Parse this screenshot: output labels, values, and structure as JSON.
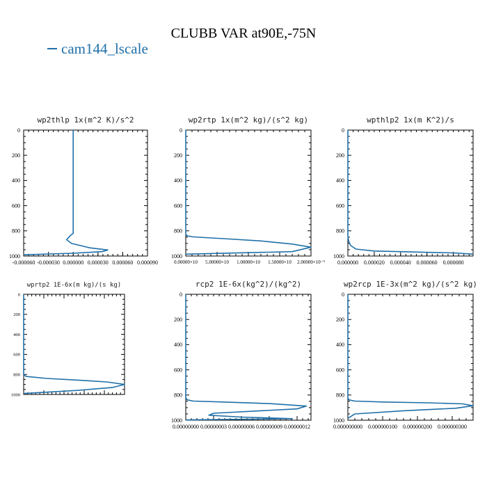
{
  "title": "CLUBB VAR at90E,-75N",
  "legend": {
    "label": "cam144_lscale",
    "color": "#1f6fa8"
  },
  "chart_data": [
    {
      "type": "line",
      "title": "wp2thlp  1x(m^2 K)/s^2",
      "xlim": [
        -6e-05,
        9e-05
      ],
      "xticks": [
        -6e-05,
        -3e-05,
        0.0,
        3e-05,
        6e-05,
        9e-05
      ],
      "xtick_labels": [
        "-0.000060",
        "-0.000030",
        "0.000000",
        "0.000030",
        "0.000060",
        "0.000090"
      ],
      "ylim": [
        1000,
        0
      ],
      "yticks": [
        0,
        200,
        400,
        600,
        800,
        1000
      ],
      "series": [
        {
          "x": [
            0.0,
            0.0,
            -3e-06,
            -8e-06,
            -2e-06,
            2e-05,
            4.2e-05,
            3.5e-05,
            0.0,
            -6e-05
          ],
          "y": [
            0,
            820,
            835,
            870,
            900,
            935,
            952,
            965,
            978,
            990
          ]
        }
      ]
    },
    {
      "type": "line",
      "title": "wp2rtp  1x(m^2 kg)/(s^2 kg)",
      "xlim": [
        0.0,
        2e-09
      ],
      "xticks": [
        0.0,
        5e-10,
        1e-09,
        1.5e-09,
        2e-09
      ],
      "xtick_labels": [
        "0.00000×10",
        "5.00000×10",
        "1.00000×10",
        "1.50000×10",
        "2.00000×10⁻⁹"
      ],
      "ylim": [
        1000,
        0
      ],
      "yticks": [
        0,
        200,
        400,
        600,
        800,
        1000
      ],
      "series": [
        {
          "x": [
            0.0,
            0.0,
            2e-11,
            1.2e-10,
            6e-10,
            1.2e-09,
            1.7e-09,
            2e-09,
            1.7e-09,
            0.0
          ],
          "y": [
            0,
            825,
            840,
            848,
            862,
            880,
            905,
            930,
            965,
            985
          ]
        }
      ]
    },
    {
      "type": "line",
      "title": "wpthlp2  1x(m K^2)/s",
      "xlim": [
        0.0,
        9.5e-05
      ],
      "xticks": [
        0.0,
        2e-05,
        4e-05,
        6e-05,
        8e-05
      ],
      "xtick_labels": [
        "0.000000",
        "0.000020",
        "0.000040",
        "0.000060",
        "0.000080"
      ],
      "ylim": [
        1000,
        0
      ],
      "yticks": [
        0,
        200,
        400,
        600,
        800,
        1000
      ],
      "series": [
        {
          "x": [
            0.0,
            0.0,
            6e-07,
            2e-06,
            6e-06,
            2e-05,
            5e-05,
            8e-05,
            9.5e-05
          ],
          "y": [
            0,
            840,
            880,
            915,
            945,
            960,
            968,
            975,
            985
          ]
        }
      ]
    },
    {
      "type": "line",
      "title": "wprtp2  1E-6x(m kg)/(s kg)",
      "xlim": [
        0.0,
        1.7e-07
      ],
      "ylim": [
        1000,
        0
      ],
      "yticks": [
        0,
        200,
        400,
        600,
        800,
        1000
      ],
      "series": [
        {
          "x": [
            0.0,
            0.0,
            4e-09,
            4e-08,
            1e-07,
            1.4e-07,
            1.7e-07,
            1.5e-07,
            9e-08,
            0.0
          ],
          "y": [
            0,
            800,
            820,
            840,
            860,
            875,
            900,
            930,
            960,
            990
          ]
        }
      ]
    },
    {
      "type": "line",
      "title": "rcp2  1E-6x(kg^2)/(kg^2)",
      "xlim": [
        0.0,
        1.35e-07
      ],
      "xticks": [
        0.0,
        3e-08,
        6e-08,
        9e-08,
        1.2e-07
      ],
      "xtick_labels": [
        "0.00000000",
        "0.00000003",
        "0.00000006",
        "0.00000009",
        "0.00000012"
      ],
      "ylim": [
        1000,
        0
      ],
      "yticks": [
        0,
        200,
        400,
        600,
        800,
        1000
      ],
      "series": [
        {
          "x": [
            0.0,
            0.0,
            1.5e-09,
            8e-09,
            4e-08,
            9e-08,
            1.3e-07,
            1.2e-07,
            3e-08,
            2.5e-08,
            6e-08,
            1.15e-07,
            0.0
          ],
          "y": [
            0,
            820,
            838,
            848,
            855,
            868,
            888,
            910,
            945,
            960,
            975,
            988,
            998
          ]
        }
      ]
    },
    {
      "type": "line",
      "title": "wp2rcp  1E-3x(m^2 kg)/(s^2 kg)",
      "xlim": [
        0.0,
        3.6e-07
      ],
      "xticks": [
        0.0,
        1e-07,
        2e-07,
        3e-07
      ],
      "xtick_labels": [
        "0.000000000",
        "0.000000100",
        "0.000000200",
        "0.000000300"
      ],
      "ylim": [
        1000,
        0
      ],
      "yticks": [
        0,
        200,
        400,
        600,
        800,
        1000
      ],
      "series": [
        {
          "x": [
            0.0,
            0.0,
            3e-09,
            2e-08,
            1e-07,
            2.3e-07,
            3.3e-07,
            3.6e-07,
            3.1e-07,
            1.6e-07,
            2e-08,
            0.0
          ],
          "y": [
            0,
            820,
            838,
            848,
            855,
            862,
            870,
            885,
            905,
            925,
            950,
            985
          ]
        }
      ]
    }
  ]
}
